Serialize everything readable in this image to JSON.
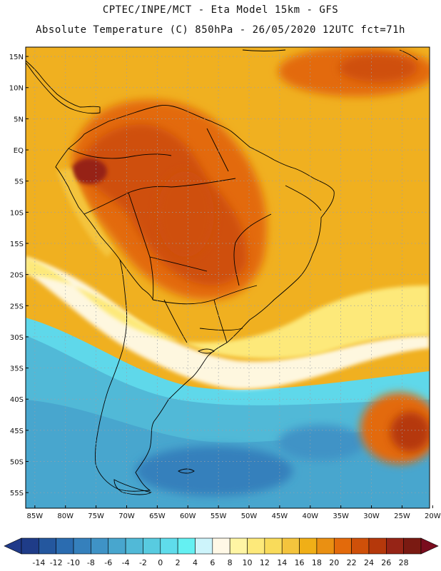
{
  "header": {
    "title_line1": "CPTEC/INPE/MCT -  Eta Model 15km - GFS",
    "title_line2": "Absolute Temperature (C) 850hPa - 26/05/2020 12UTC fct=71h"
  },
  "map": {
    "lat_labels": [
      "15N",
      "10N",
      "5N",
      "EQ",
      "5S",
      "10S",
      "15S",
      "20S",
      "25S",
      "30S",
      "35S",
      "40S",
      "45S",
      "50S",
      "55S"
    ],
    "lat_values": [
      15,
      10,
      5,
      0,
      -5,
      -10,
      -15,
      -20,
      -25,
      -30,
      -35,
      -40,
      -45,
      -50,
      -55
    ],
    "lon_labels": [
      "85W",
      "80W",
      "75W",
      "70W",
      "65W",
      "60W",
      "55W",
      "50W",
      "45W",
      "40W",
      "35W",
      "30W",
      "25W",
      "20W"
    ],
    "lon_values": [
      -85,
      -80,
      -75,
      -70,
      -65,
      -60,
      -55,
      -50,
      -45,
      -40,
      -35,
      -30,
      -25,
      -20
    ],
    "lat_range": [
      -57.5,
      16.5
    ],
    "lon_range": [
      -86.5,
      -20.5
    ]
  },
  "colorbar": {
    "labels": [
      "-14",
      "-12",
      "-10",
      "-8",
      "-6",
      "-4",
      "-2",
      "0",
      "2",
      "4",
      "6",
      "8",
      "10",
      "12",
      "14",
      "16",
      "18",
      "20",
      "22",
      "24",
      "26",
      "28"
    ],
    "colors": [
      "#1f3c88",
      "#24579e",
      "#2b6cb0",
      "#3580bc",
      "#3f93c6",
      "#48a6ce",
      "#51b9d7",
      "#58cbe0",
      "#5fdceb",
      "#64f0f2",
      "#cdf4fb",
      "#fff8e6",
      "#fff5a4",
      "#fde97a",
      "#f9db5a",
      "#f4c43d",
      "#f0af17",
      "#ea9012",
      "#e36a0b",
      "#cf5009",
      "#b5380b",
      "#962416",
      "#7a1a12"
    ],
    "under_color": "#203a8a",
    "over_color": "#7a0c1e"
  }
}
